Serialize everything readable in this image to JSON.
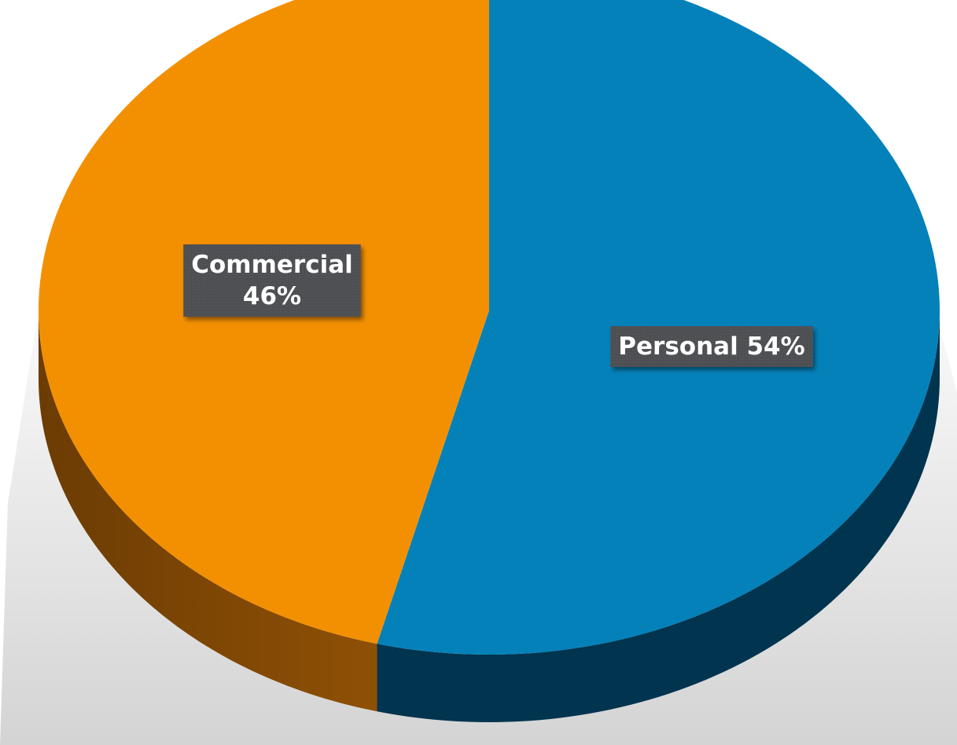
{
  "chart_data": {
    "type": "pie",
    "style": "3d",
    "title": "",
    "slices": [
      {
        "label": "Personal",
        "value": 54,
        "label_text": "Personal 54%",
        "label_lines": [
          "Personal 54%"
        ],
        "color": "#0581ba",
        "side_color": "#00344f"
      },
      {
        "label": "Commercial",
        "value": 46,
        "label_text": "Commercial 46%",
        "label_lines": [
          "Commercial",
          "46%"
        ],
        "color": "#f39002",
        "side_color": "#8f5005"
      }
    ],
    "data_label_box_color": "#4d4f53",
    "data_label_text_color": "#ffffff"
  }
}
